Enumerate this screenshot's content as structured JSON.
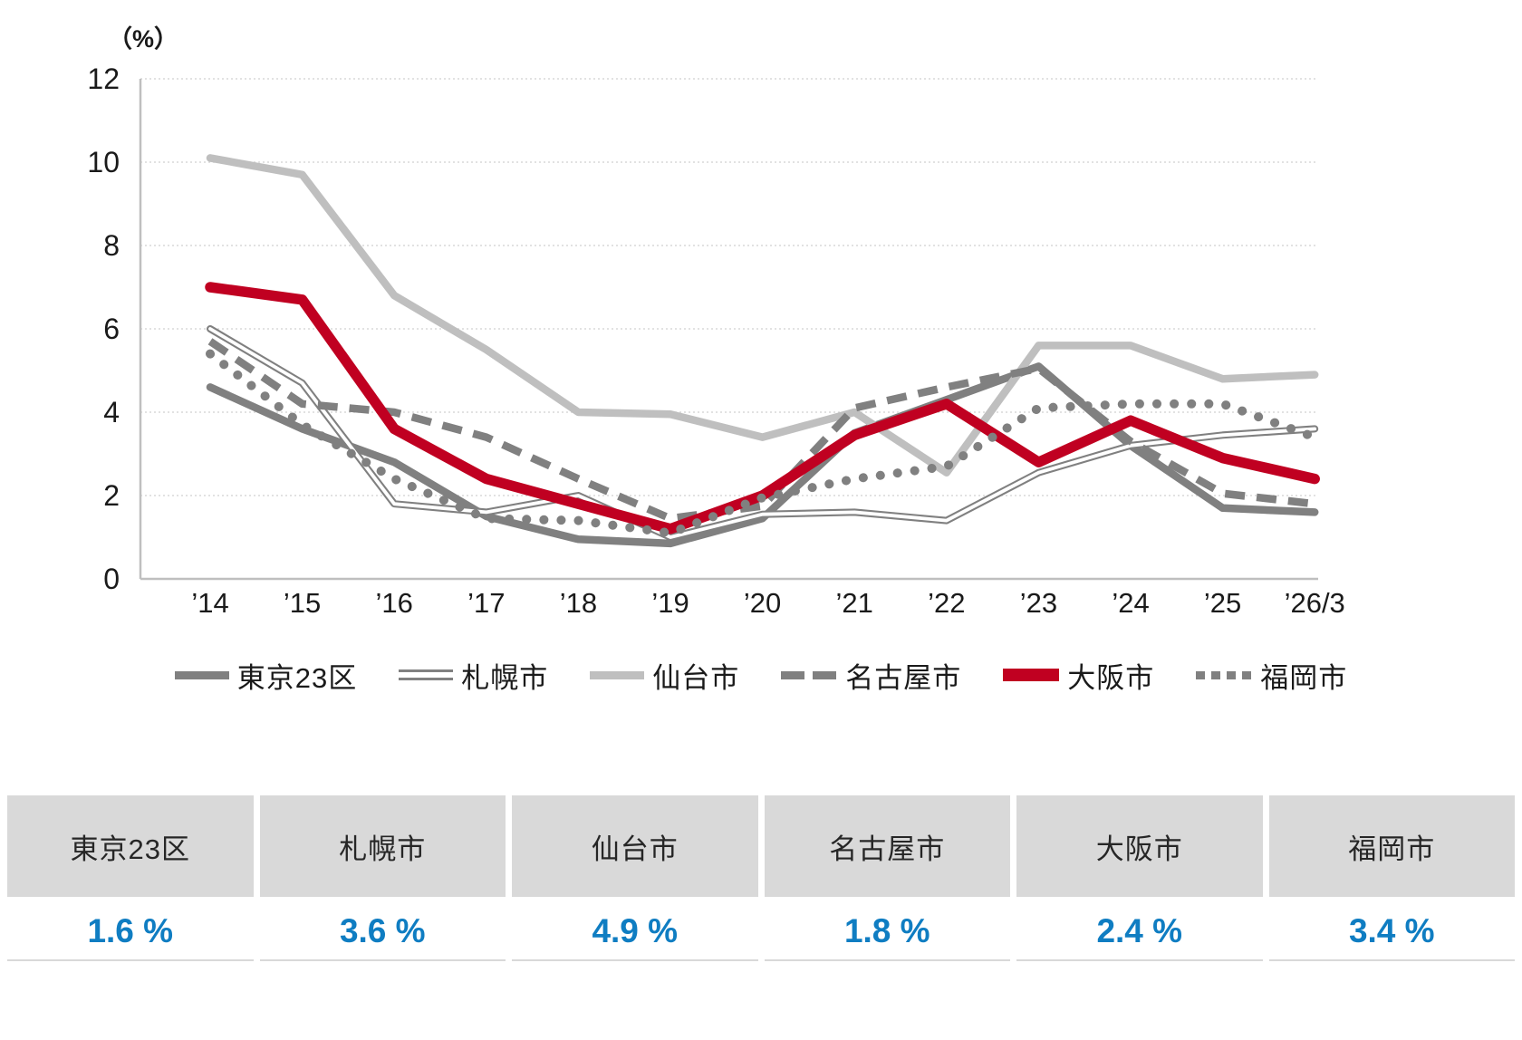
{
  "chart_data": {
    "type": "line",
    "title": "",
    "unit_label": "（%）",
    "x_labels": [
      "’14",
      "’15",
      "’16",
      "’17",
      "’18",
      "’19",
      "’20",
      "’21",
      "’22",
      "’23",
      "’24",
      "’25",
      "’26/3"
    ],
    "yticks": [
      0,
      2,
      4,
      6,
      8,
      10,
      12
    ],
    "ylim": [
      0,
      12
    ],
    "grid": "horizontal-dotted",
    "legend_position": "bottom",
    "series": [
      {
        "key": "tokyo23",
        "name": "東京23区",
        "color": "#808080",
        "style": "solid",
        "values": [
          4.6,
          3.6,
          2.8,
          1.5,
          0.95,
          0.85,
          1.45,
          3.5,
          4.3,
          5.1,
          3.2,
          1.7,
          1.6
        ]
      },
      {
        "key": "sapporo",
        "name": "札幌市",
        "color": "#808080",
        "style": "double",
        "values": [
          6.0,
          4.7,
          1.8,
          1.6,
          2.0,
          1.0,
          1.55,
          1.6,
          1.4,
          2.55,
          3.2,
          3.45,
          3.6
        ]
      },
      {
        "key": "sendai",
        "name": "仙台市",
        "color": "#bfbfbf",
        "style": "solid",
        "values": [
          10.1,
          9.7,
          6.8,
          5.5,
          4.0,
          3.95,
          3.4,
          4.0,
          2.55,
          5.6,
          5.6,
          4.8,
          4.9
        ]
      },
      {
        "key": "nagoya",
        "name": "名古屋市",
        "color": "#808080",
        "style": "dashed",
        "values": [
          5.7,
          4.2,
          4.0,
          3.4,
          2.4,
          1.45,
          1.75,
          4.1,
          4.6,
          5.05,
          3.3,
          2.05,
          1.8
        ]
      },
      {
        "key": "osaka",
        "name": "大阪市",
        "color": "#c00021",
        "style": "heavy",
        "values": [
          7.0,
          6.7,
          3.6,
          2.4,
          1.8,
          1.2,
          2.0,
          3.45,
          4.2,
          2.8,
          3.8,
          2.9,
          2.4
        ]
      },
      {
        "key": "fukuoka",
        "name": "福岡市",
        "color": "#808080",
        "style": "dotted",
        "values": [
          5.4,
          3.7,
          2.4,
          1.45,
          1.4,
          1.1,
          1.95,
          2.4,
          2.7,
          4.1,
          4.2,
          4.2,
          3.4
        ]
      }
    ]
  },
  "table": {
    "value_color": "#0f7dc2",
    "columns": [
      {
        "key": "tokyo23",
        "label": "東京23区",
        "value": "1.6 %"
      },
      {
        "key": "sapporo",
        "label": "札幌市",
        "value": "3.6 %"
      },
      {
        "key": "sendai",
        "label": "仙台市",
        "value": "4.9 %"
      },
      {
        "key": "nagoya",
        "label": "名古屋市",
        "value": "1.8 %"
      },
      {
        "key": "osaka",
        "label": "大阪市",
        "value": "2.4 %"
      },
      {
        "key": "fukuoka",
        "label": "福岡市",
        "value": "3.4 %"
      }
    ]
  }
}
